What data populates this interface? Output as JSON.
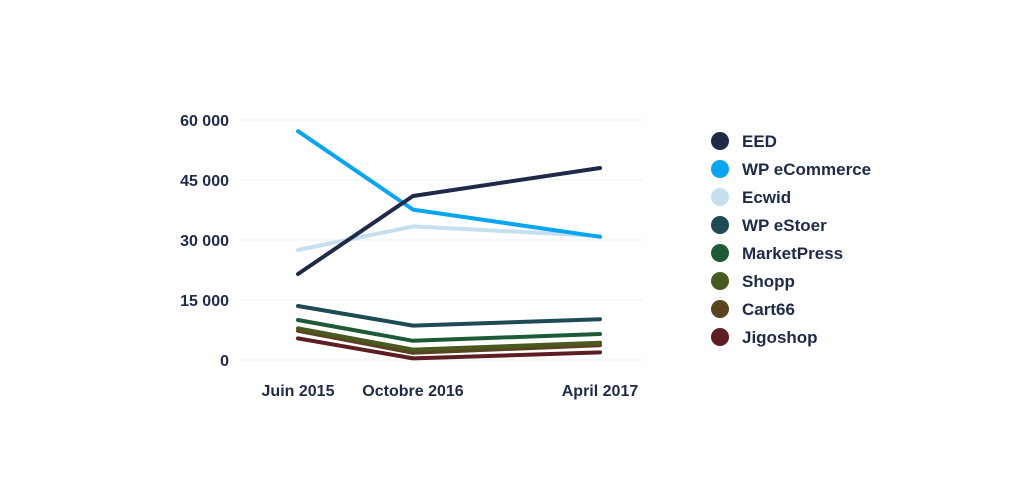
{
  "chart_data": {
    "type": "line",
    "title": "",
    "xlabel": "",
    "ylabel": "",
    "categories": [
      "Juin 2015",
      "Octobre 2016",
      "April 2017"
    ],
    "ylim": [
      0,
      60000
    ],
    "yticks": [
      0,
      15000,
      30000,
      45000,
      60000
    ],
    "ytick_labels": [
      "0",
      "15 000",
      "30 000",
      "45 000",
      "60 000"
    ],
    "grid": true,
    "legend_position": "right",
    "series": [
      {
        "name": "WP eCommerce",
        "color": "#0aa5f0",
        "values": [
          57200,
          37600,
          30800
        ]
      },
      {
        "name": "Ecwid",
        "color": "#c5dfee",
        "values": [
          27500,
          33400,
          31000
        ]
      },
      {
        "name": "EED",
        "color": "#1f2a48",
        "values": [
          21500,
          41000,
          48000
        ]
      },
      {
        "name": "WP eStoer",
        "color": "#1d4a55",
        "values": [
          13500,
          8600,
          10200
        ]
      },
      {
        "name": "MarketPress",
        "color": "#1d5a38",
        "values": [
          10000,
          4800,
          6500
        ]
      },
      {
        "name": "Shopp",
        "color": "#495a20",
        "values": [
          7900,
          2600,
          4300
        ]
      },
      {
        "name": "Cart66",
        "color": "#5a4320",
        "values": [
          7300,
          1800,
          3700
        ]
      },
      {
        "name": "Jigoshop",
        "color": "#5c1e22",
        "values": [
          5400,
          400,
          1900
        ]
      }
    ],
    "legend_order": [
      "EED",
      "WP eCommerce",
      "Ecwid",
      "WP eStoer",
      "MarketPress",
      "Shopp",
      "Cart66",
      "Jigoshop"
    ]
  }
}
